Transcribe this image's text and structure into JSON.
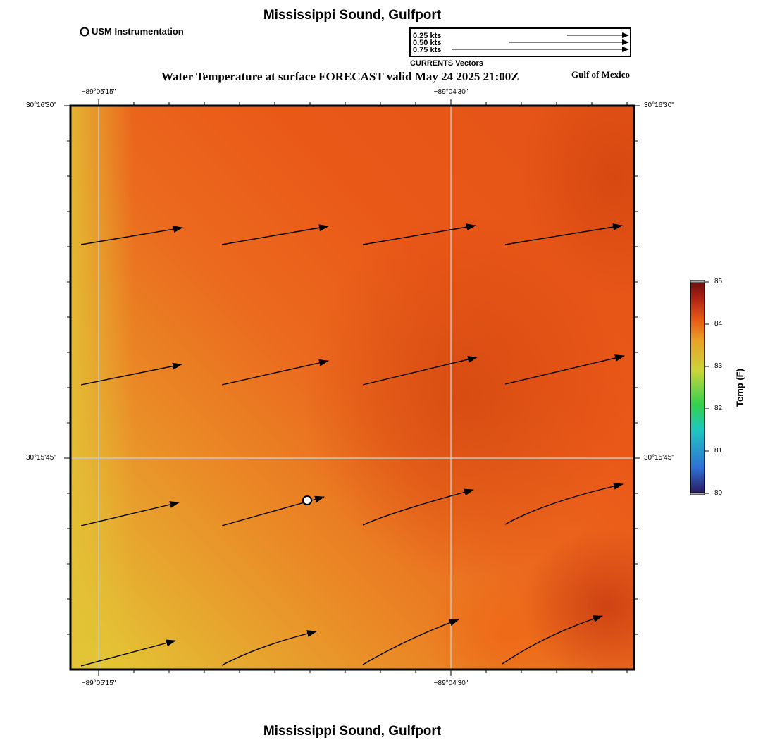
{
  "header": {
    "title": "Mississippi Sound, Gulfport",
    "subtitle": "Water Temperature at surface FORECAST valid May 24 2025 21:00Z",
    "region_label": "Gulf of Mexico"
  },
  "station_legend": {
    "label": "USM Instrumentation"
  },
  "vector_legend": {
    "entries": [
      "0.25 kts",
      "0.50 kts",
      "0.75 kts"
    ],
    "caption": "CURRENTS Vectors"
  },
  "axes": {
    "lon_top": [
      "−89°05'15\"",
      "−89°04'30\""
    ],
    "lon_bottom": [
      "−89°05'15\"",
      "−89°04'30\""
    ],
    "lat_left": [
      "30°16'30\"",
      "30°15'45\""
    ],
    "lat_right": [
      "30°16'30\"",
      "30°15'45\""
    ]
  },
  "colorbar": {
    "title": "Temp (F)",
    "min": 80,
    "max": 85,
    "ticks": [
      "85",
      "84",
      "83",
      "82",
      "81",
      "80"
    ],
    "colors": [
      "#2a1a5e",
      "#2f6fd6",
      "#1fc7c0",
      "#33d14d",
      "#c9d43a",
      "#e8a228",
      "#e85a16",
      "#b02414",
      "#6b0e0e"
    ]
  },
  "footer": {
    "title": "Mississippi Sound, Gulfport"
  },
  "chart_data": {
    "type": "heatmap",
    "title": "Water Temperature at surface FORECAST valid May 24 2025 21:00Z",
    "variable": "Water Temperature (F)",
    "range": [
      80,
      85
    ],
    "field_summary": "~83.0 F (yellow) along western/southwestern edge rising to ~84.3 F (deep orange-red) in the east and southeast",
    "current_vectors": {
      "units": "kts",
      "direction": "toward east-northeast",
      "rows": 4,
      "cols": 4
    },
    "stations": [
      {
        "name": "USM Instrumentation"
      }
    ]
  }
}
